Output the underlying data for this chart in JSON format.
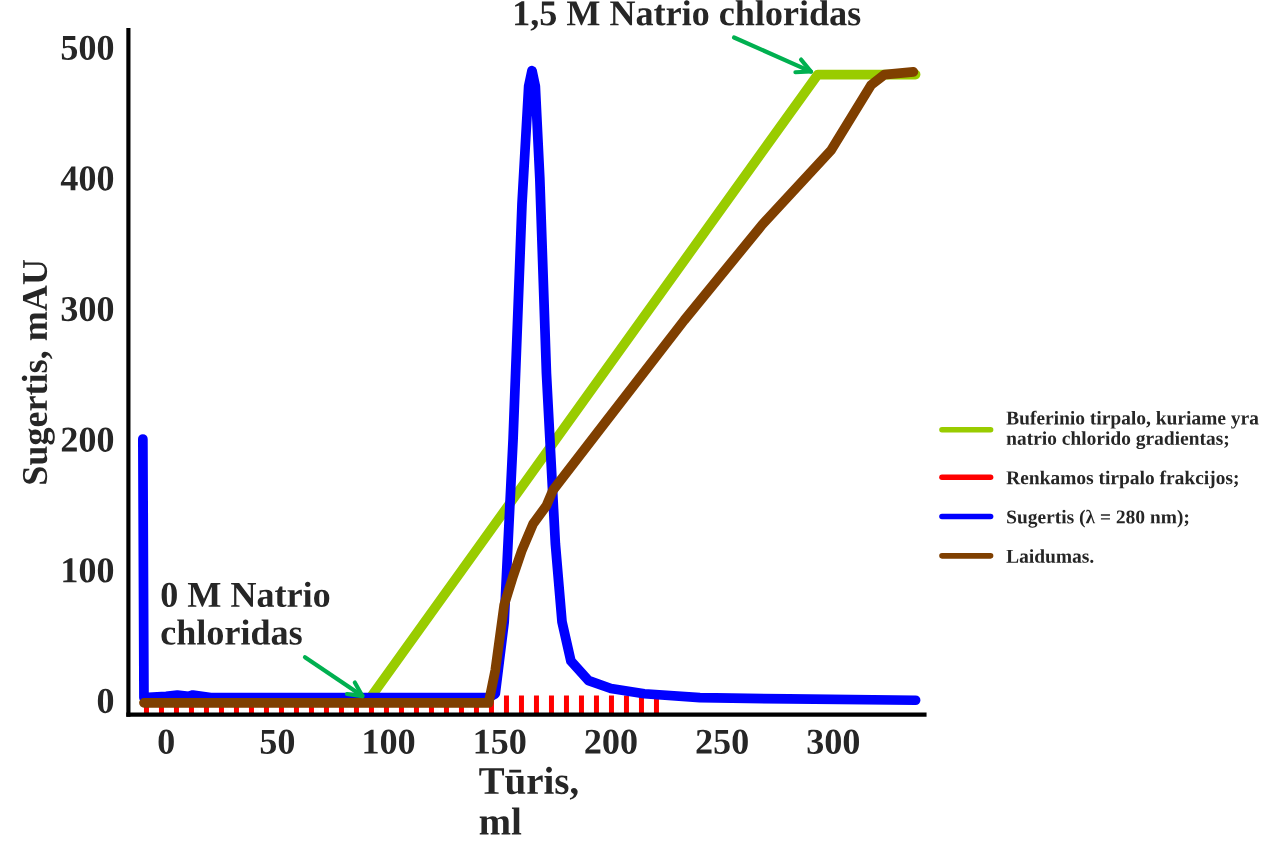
{
  "chart_data": {
    "type": "line",
    "xlabel": "Tūris,\nml",
    "ylabel": "Sugertis, mAU",
    "xlim": [
      -17,
      341
    ],
    "ylim": [
      -11,
      513
    ],
    "xticks": [
      0,
      50,
      100,
      150,
      200,
      250,
      300
    ],
    "yticks": [
      0,
      100,
      200,
      300,
      400,
      500
    ],
    "grid": false,
    "legend": "right",
    "marker": "none",
    "series": [
      {
        "name": "Buferinio tirpalo, kuriame yra\nnatrio chlorido gradientas;",
        "color": "#99cc00",
        "x": [
          91,
          293,
          337
        ],
        "values": [
          0,
          479,
          479
        ]
      },
      {
        "name": "Renkamos tirpalo frakcijos;",
        "color": "#ff0000",
        "line_style": "dashed",
        "x": [
          -10,
          226
        ],
        "values": [
          -6,
          -6
        ]
      },
      {
        "name": "Sugertis (λ = 280 nm);",
        "color": "#0000ff",
        "x": [
          -10.5,
          -10,
          0,
          5,
          10,
          12,
          20,
          100,
          145,
          148,
          152,
          156,
          160,
          163,
          164.5,
          166,
          168,
          171,
          175,
          178,
          182,
          190,
          200,
          215,
          240,
          280,
          337
        ],
        "values": [
          200,
          2,
          3,
          4,
          3,
          4,
          2,
          2,
          2,
          5,
          60,
          200,
          380,
          470,
          482,
          470,
          400,
          250,
          120,
          60,
          30,
          15,
          9,
          5,
          2,
          1,
          0
        ]
      },
      {
        "name": "Laidumas.",
        "color": "#7f3f00",
        "x": [
          -10,
          145,
          148,
          152,
          156,
          160,
          165,
          171,
          174,
          198,
          233,
          268,
          299,
          317,
          323,
          336
        ],
        "values": [
          -2,
          -2,
          23,
          73,
          95,
          115,
          135,
          149,
          161,
          214,
          291,
          364,
          421,
          471,
          479,
          481
        ]
      }
    ],
    "annotations": [
      {
        "text": "0 M Natrio\nchloridas",
        "x": 91,
        "y": 0
      },
      {
        "text": "1,5 M Natrio chloridas",
        "x": 293,
        "y": 479
      }
    ]
  }
}
